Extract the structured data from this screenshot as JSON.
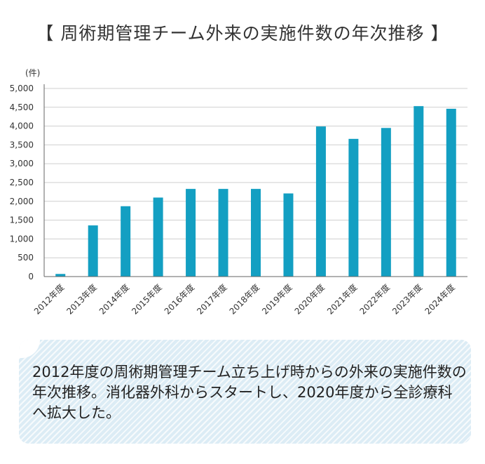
{
  "title": "【 周術期管理チーム外来の実施件数の年次推移 】",
  "chart_data": {
    "type": "bar",
    "title": "【 周術期管理チーム外来の実施件数の年次推移 】",
    "unit_label": "(件)",
    "xlabel": "",
    "ylabel": "(件)",
    "ylim": [
      0,
      5000
    ],
    "ytick_step": 500,
    "yticks": [
      "0",
      "500",
      "1,000",
      "1,500",
      "2,000",
      "2,500",
      "3,000",
      "3,500",
      "4,000",
      "4,500",
      "5,000"
    ],
    "grid": true,
    "bar_color": "#139fc2",
    "categories": [
      "2012年度",
      "2013年度",
      "2014年度",
      "2015年度",
      "2016年度",
      "2017年度",
      "2018年度",
      "2019年度",
      "2020年度",
      "2021年度",
      "2022年度",
      "2023年度",
      "2024年度"
    ],
    "values": [
      70,
      1360,
      1870,
      2100,
      2330,
      2330,
      2330,
      2210,
      3990,
      3660,
      3950,
      4530,
      4460
    ]
  },
  "caption": "2012年度の周術期管理チーム立ち上げ時からの外来の実施件数の年次推移。消化器外科からスタートし、2020年度から全診療科へ拡大した。",
  "colors": {
    "bar": "#139fc2",
    "grid": "#cfcfcf",
    "axis": "#666666",
    "caption_bg": "#dcecf5"
  }
}
